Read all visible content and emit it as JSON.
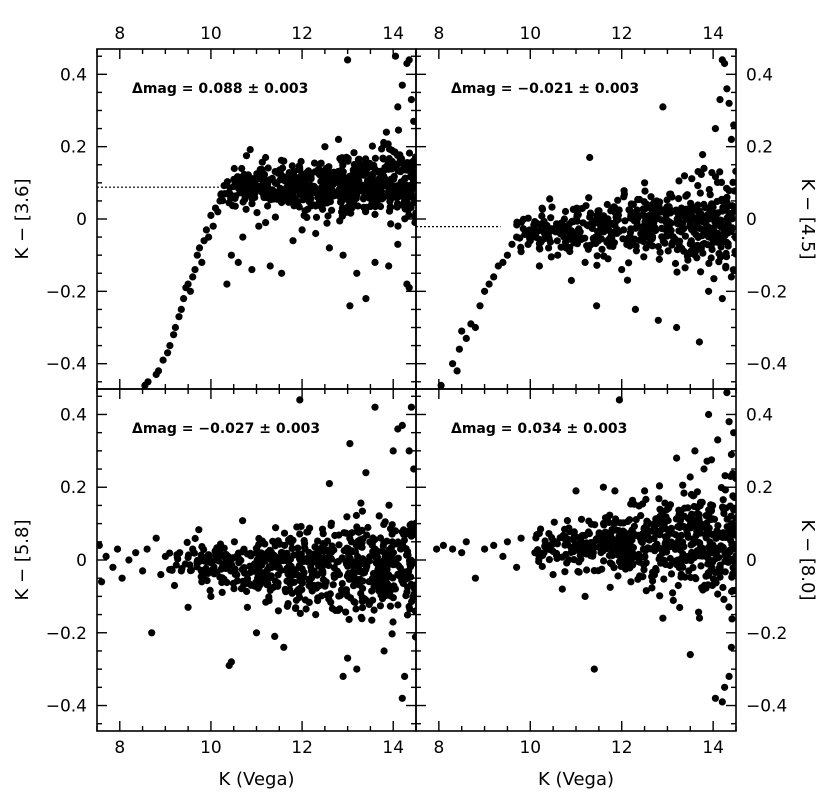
{
  "chart_data": {
    "type": "scatter",
    "xlabel": "K (Vega)",
    "xlim": [
      7.5,
      14.5
    ],
    "ylim": [
      -0.47,
      0.47
    ],
    "x_ticks": [
      8,
      10,
      12,
      14
    ],
    "y_ticks": [
      -0.4,
      -0.2,
      0,
      0.2,
      0.4
    ],
    "x_tick_labels": [
      "8",
      "10",
      "12",
      "14"
    ],
    "y_tick_labels": [
      "−0.4",
      "−0.2",
      "0",
      "0.2",
      "0.4"
    ],
    "panels": [
      {
        "id": "3.6",
        "ylabel": "K − [3.6]",
        "annotation": "Δmag = 0.088 ± 0.003",
        "offset": 0.088,
        "offset_line_x_end": 10.2,
        "points": [
          [
            8.55,
            -0.46
          ],
          [
            8.62,
            -0.45
          ],
          [
            8.8,
            -0.43
          ],
          [
            8.85,
            -0.42
          ],
          [
            8.95,
            -0.39
          ],
          [
            9.05,
            -0.37
          ],
          [
            9.1,
            -0.35
          ],
          [
            9.18,
            -0.32
          ],
          [
            9.22,
            -0.3
          ],
          [
            9.3,
            -0.27
          ],
          [
            9.35,
            -0.25
          ],
          [
            9.4,
            -0.22
          ],
          [
            9.45,
            -0.19
          ],
          [
            9.5,
            -0.18
          ],
          [
            9.55,
            -0.2
          ],
          [
            9.6,
            -0.16
          ],
          [
            9.65,
            -0.14
          ],
          [
            9.7,
            -0.1
          ],
          [
            9.75,
            -0.08
          ],
          [
            9.8,
            -0.12
          ],
          [
            9.85,
            -0.06
          ],
          [
            9.9,
            -0.03
          ],
          [
            9.95,
            -0.05
          ],
          [
            10.0,
            0.01
          ],
          [
            10.05,
            -0.02
          ],
          [
            10.1,
            0.03
          ],
          [
            10.15,
            0.02
          ],
          [
            10.2,
            0.05
          ],
          [
            10.3,
            0.07
          ],
          [
            10.35,
            -0.18
          ],
          [
            10.45,
            -0.1
          ],
          [
            10.6,
            -0.12
          ],
          [
            10.7,
            -0.05
          ],
          [
            10.9,
            -0.14
          ],
          [
            11.05,
            -0.02
          ],
          [
            11.2,
            -0.01
          ],
          [
            11.3,
            -0.13
          ],
          [
            11.55,
            -0.15
          ],
          [
            11.8,
            -0.06
          ],
          [
            12.0,
            -0.03
          ],
          [
            12.3,
            -0.04
          ],
          [
            12.6,
            -0.08
          ],
          [
            12.9,
            -0.1
          ],
          [
            13.05,
            -0.24
          ],
          [
            13.2,
            -0.15
          ],
          [
            13.4,
            -0.22
          ],
          [
            13.6,
            -0.12
          ],
          [
            13.9,
            -0.13
          ],
          [
            14.1,
            -0.07
          ],
          [
            14.3,
            -0.18
          ],
          [
            14.35,
            -0.19
          ],
          [
            13.0,
            0.44
          ],
          [
            14.05,
            0.45
          ],
          [
            14.3,
            0.43
          ],
          [
            14.35,
            0.44
          ],
          [
            14.2,
            0.37
          ],
          [
            14.4,
            0.33
          ],
          [
            14.1,
            0.31
          ],
          [
            13.85,
            0.24
          ],
          [
            14.45,
            0.27
          ],
          [
            12.5,
            0.2
          ],
          [
            12.8,
            0.22
          ],
          [
            11.6,
            0.16
          ],
          [
            11.2,
            0.17
          ]
        ],
        "band": {
          "x_start": 10.2,
          "x_end": 14.5,
          "center_start": 0.085,
          "center_end": 0.1,
          "spread_start": 0.045,
          "spread_end": 0.1,
          "count": 620,
          "seed": 11
        }
      },
      {
        "id": "4.5",
        "ylabel": "K − [4.5]",
        "annotation": "Δmag = −0.021 ± 0.003",
        "offset": -0.021,
        "offset_line_x_end": 9.35,
        "points": [
          [
            8.05,
            -0.46
          ],
          [
            8.3,
            -0.4
          ],
          [
            8.4,
            -0.42
          ],
          [
            8.45,
            -0.36
          ],
          [
            8.5,
            -0.31
          ],
          [
            8.6,
            -0.33
          ],
          [
            8.7,
            -0.29
          ],
          [
            8.8,
            -0.3
          ],
          [
            8.9,
            -0.24
          ],
          [
            9.0,
            -0.2
          ],
          [
            9.1,
            -0.18
          ],
          [
            9.2,
            -0.16
          ],
          [
            9.3,
            -0.13
          ],
          [
            9.4,
            -0.12
          ],
          [
            9.5,
            -0.1
          ],
          [
            9.6,
            -0.07
          ],
          [
            9.7,
            -0.05
          ],
          [
            9.8,
            -0.09
          ],
          [
            9.9,
            -0.04
          ],
          [
            10.0,
            -0.06
          ],
          [
            10.1,
            -0.03
          ],
          [
            10.2,
            -0.13
          ],
          [
            10.4,
            -0.08
          ],
          [
            10.6,
            -0.1
          ],
          [
            10.9,
            -0.17
          ],
          [
            11.2,
            -0.12
          ],
          [
            11.45,
            -0.24
          ],
          [
            11.7,
            -0.11
          ],
          [
            12.0,
            -0.14
          ],
          [
            12.3,
            -0.25
          ],
          [
            12.8,
            -0.28
          ],
          [
            13.2,
            -0.3
          ],
          [
            13.7,
            -0.34
          ],
          [
            13.9,
            -0.2
          ],
          [
            14.2,
            -0.22
          ],
          [
            14.4,
            -0.16
          ],
          [
            11.3,
            0.17
          ],
          [
            12.9,
            0.31
          ],
          [
            14.2,
            0.44
          ],
          [
            14.25,
            0.43
          ],
          [
            14.3,
            0.36
          ],
          [
            14.15,
            0.33
          ],
          [
            14.35,
            0.32
          ],
          [
            14.05,
            0.25
          ],
          [
            14.4,
            0.22
          ],
          [
            14.45,
            0.26
          ],
          [
            13.8,
            0.14
          ],
          [
            12.5,
            0.1
          ]
        ],
        "band": {
          "x_start": 9.6,
          "x_end": 14.5,
          "center_start": -0.03,
          "center_end": -0.005,
          "spread_start": 0.04,
          "spread_end": 0.11,
          "count": 560,
          "seed": 23
        }
      },
      {
        "id": "5.8",
        "ylabel": "K − [5.8]",
        "annotation": "Δmag = −0.027 ± 0.003",
        "offset": -0.027,
        "offset_line_x_end": null,
        "points": [
          [
            7.55,
            0.04
          ],
          [
            7.6,
            -0.06
          ],
          [
            7.7,
            0.01
          ],
          [
            7.85,
            -0.02
          ],
          [
            7.95,
            0.03
          ],
          [
            8.05,
            -0.05
          ],
          [
            8.2,
            0.0
          ],
          [
            8.35,
            0.02
          ],
          [
            8.5,
            -0.03
          ],
          [
            8.6,
            0.03
          ],
          [
            8.7,
            -0.2
          ],
          [
            8.8,
            0.06
          ],
          [
            8.9,
            -0.04
          ],
          [
            9.0,
            0.01
          ],
          [
            9.2,
            -0.07
          ],
          [
            9.35,
            -0.03
          ],
          [
            9.5,
            -0.13
          ],
          [
            9.6,
            0.03
          ],
          [
            9.8,
            -0.06
          ],
          [
            10.0,
            -0.1
          ],
          [
            10.2,
            0.02
          ],
          [
            10.4,
            -0.29
          ],
          [
            10.45,
            -0.28
          ],
          [
            10.8,
            -0.13
          ],
          [
            11.0,
            -0.2
          ],
          [
            11.4,
            -0.21
          ],
          [
            11.6,
            -0.24
          ],
          [
            11.95,
            0.44
          ],
          [
            12.3,
            -0.15
          ],
          [
            12.6,
            0.21
          ],
          [
            13.05,
            0.32
          ],
          [
            13.2,
            -0.3
          ],
          [
            13.6,
            0.42
          ],
          [
            13.8,
            -0.25
          ],
          [
            14.2,
            -0.38
          ],
          [
            14.25,
            -0.32
          ],
          [
            14.1,
            0.36
          ],
          [
            14.2,
            0.37
          ],
          [
            14.35,
            0.3
          ],
          [
            14.4,
            0.42
          ],
          [
            14.45,
            0.25
          ],
          [
            14.0,
            0.3
          ],
          [
            13.0,
            -0.27
          ],
          [
            12.9,
            -0.32
          ],
          [
            13.4,
            0.24
          ]
        ],
        "band": {
          "x_start": 9.0,
          "x_end": 14.5,
          "center_start": -0.01,
          "center_end": -0.03,
          "spread_start": 0.045,
          "spread_end": 0.14,
          "count": 640,
          "seed": 37
        }
      },
      {
        "id": "8.0",
        "ylabel": "K − [8.0]",
        "annotation": "Δmag = 0.034 ± 0.003",
        "offset": 0.034,
        "offset_line_x_end": null,
        "points": [
          [
            7.95,
            0.03
          ],
          [
            8.1,
            0.04
          ],
          [
            8.3,
            0.03
          ],
          [
            8.5,
            0.02
          ],
          [
            8.6,
            0.05
          ],
          [
            8.8,
            -0.05
          ],
          [
            9.0,
            0.03
          ],
          [
            9.2,
            0.04
          ],
          [
            9.4,
            0.01
          ],
          [
            9.5,
            0.05
          ],
          [
            9.7,
            -0.02
          ],
          [
            9.8,
            0.06
          ],
          [
            10.1,
            0.02
          ],
          [
            10.3,
            0.02
          ],
          [
            10.5,
            -0.04
          ],
          [
            10.7,
            -0.08
          ],
          [
            11.0,
            0.19
          ],
          [
            11.2,
            -0.1
          ],
          [
            11.4,
            -0.3
          ],
          [
            11.6,
            0.2
          ],
          [
            11.85,
            0.19
          ],
          [
            11.95,
            0.44
          ],
          [
            12.2,
            -0.06
          ],
          [
            12.5,
            0.19
          ],
          [
            12.9,
            -0.16
          ],
          [
            13.2,
            0.28
          ],
          [
            13.5,
            -0.26
          ],
          [
            13.9,
            0.4
          ],
          [
            14.05,
            -0.38
          ],
          [
            14.2,
            -0.39
          ],
          [
            14.25,
            -0.35
          ],
          [
            14.35,
            -0.32
          ],
          [
            14.4,
            -0.24
          ],
          [
            14.3,
            0.46
          ],
          [
            14.35,
            0.38
          ],
          [
            14.45,
            0.35
          ],
          [
            14.4,
            0.29
          ],
          [
            14.1,
            0.33
          ],
          [
            13.8,
            0.25
          ],
          [
            13.6,
            0.3
          ]
        ],
        "band": {
          "x_start": 10.0,
          "x_end": 14.5,
          "center_start": 0.035,
          "center_end": 0.06,
          "spread_start": 0.035,
          "spread_end": 0.16,
          "count": 600,
          "seed": 53
        }
      }
    ]
  }
}
